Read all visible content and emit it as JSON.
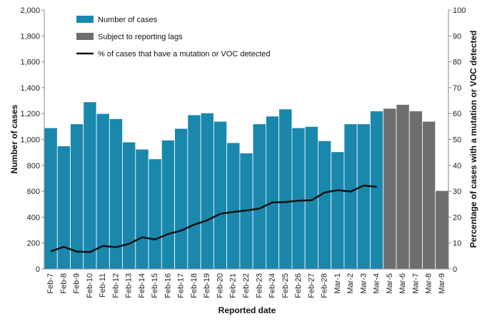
{
  "chart_data": {
    "type": "bar",
    "categories": [
      "Feb-7",
      "Feb-8",
      "Feb-9",
      "Feb-10",
      "Feb-11",
      "Feb-12",
      "Feb-13",
      "Feb-14",
      "Feb-15",
      "Feb-16",
      "Feb-17",
      "Feb-18",
      "Feb-19",
      "Feb-20",
      "Feb-21",
      "Feb-22",
      "Feb-23",
      "Feb-24",
      "Feb-25",
      "Feb-26",
      "Feb-27",
      "Feb-28",
      "Mar-1",
      "Mar-2",
      "Mar-3",
      "Mar-4",
      "Mar-5",
      "Mar-6",
      "Mar-7",
      "Mar-8",
      "Mar-9"
    ],
    "series": [
      {
        "name": "Number of cases",
        "kind": "bar",
        "color": "#1a87ad",
        "values": [
          1090,
          950,
          1120,
          1290,
          1200,
          1160,
          980,
          925,
          850,
          995,
          1085,
          1190,
          1205,
          1140,
          975,
          895,
          1120,
          1180,
          1235,
          1090,
          1100,
          990,
          905,
          1120,
          1120,
          1220,
          null,
          null,
          null,
          null,
          null
        ]
      },
      {
        "name": "Subject to reporting lags",
        "kind": "bar",
        "color": "#6e6e6e",
        "values": [
          null,
          null,
          null,
          null,
          null,
          null,
          null,
          null,
          null,
          null,
          null,
          null,
          null,
          null,
          null,
          null,
          null,
          null,
          null,
          null,
          null,
          null,
          null,
          null,
          null,
          null,
          1240,
          1270,
          1220,
          1140,
          605
        ]
      },
      {
        "name": "% of cases that have a mutation or VOC detected",
        "kind": "line",
        "axis": "right",
        "color": "#111111",
        "values": [
          6.8,
          8.5,
          6.7,
          6.5,
          8.9,
          8.4,
          9.7,
          12.2,
          11.4,
          13.5,
          14.8,
          17.1,
          18.8,
          21.3,
          22.0,
          22.6,
          23.3,
          25.7,
          25.8,
          26.4,
          26.5,
          29.5,
          30.4,
          29.9,
          32.2,
          31.7,
          null,
          null,
          null,
          null,
          null
        ]
      }
    ],
    "xlabel": "Reported date",
    "ylabel": "Number of cases",
    "ylabel_right": "Percentage of cases with a mutation or VOC detected",
    "ylim": [
      0,
      2000
    ],
    "yticks": [
      "0",
      "200",
      "400",
      "600",
      "800",
      "1,000",
      "1,200",
      "1,400",
      "1,600",
      "1,800",
      "2,000"
    ],
    "ylim_right": [
      0,
      100
    ],
    "yticks_right": [
      "0",
      "10",
      "20",
      "30",
      "40",
      "50",
      "60",
      "70",
      "80",
      "90",
      "100"
    ],
    "grid": false,
    "legend_placement": "top-left"
  }
}
